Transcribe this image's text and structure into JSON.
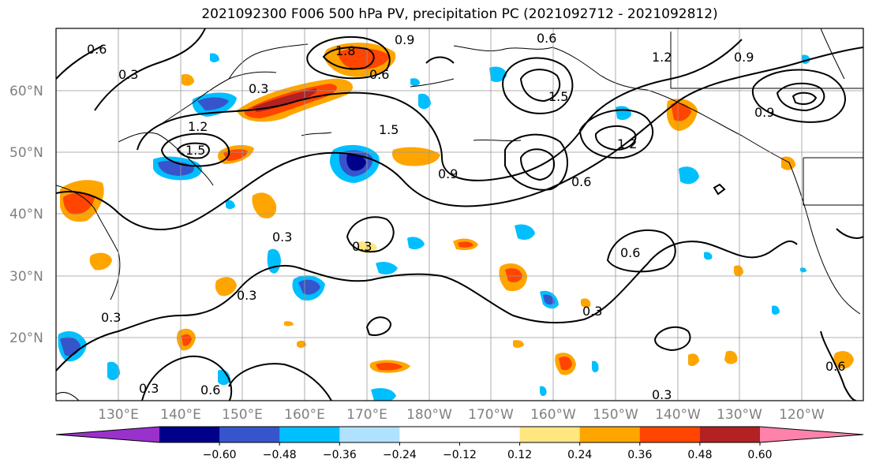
{
  "title": "2021092300 F006 500 hPa PV, precipitation PC (2021092712 - 2021092812)",
  "map": {
    "lat_labels": [
      "60°N",
      "50°N",
      "40°N",
      "30°N",
      "20°N"
    ],
    "lon_labels": [
      "130°E",
      "140°E",
      "150°E",
      "160°E",
      "170°E",
      "180°W",
      "170°W",
      "160°W",
      "150°W",
      "140°W",
      "130°W",
      "120°W"
    ],
    "contour_labels": [
      "0.6",
      "0.3",
      "1.8",
      "0.6",
      "0.9",
      "0.6",
      "1.2",
      "0.3",
      "0.9",
      "1.5",
      "1.2",
      "1.5",
      "0.9",
      "1.5",
      "1.2",
      "0.6",
      "0.9",
      "0.6",
      "0.3",
      "0.3",
      "0.6",
      "0.3",
      "0.3",
      "0.3",
      "0.3",
      "0.6",
      "0.3"
    ]
  },
  "colorbar": {
    "colors": [
      "#9932cc",
      "#00008b",
      "#3655cc",
      "#00bfff",
      "#b0e2ff",
      "#ffffff",
      "#ffffff",
      "#ffe680",
      "#ffa500",
      "#ff4500",
      "#b22222",
      "#ff82ab"
    ],
    "tick_labels": [
      "−0.60",
      "−0.48",
      "−0.36",
      "−0.24",
      "−0.12",
      "0.12",
      "0.24",
      "0.36",
      "0.48",
      "0.60"
    ]
  }
}
